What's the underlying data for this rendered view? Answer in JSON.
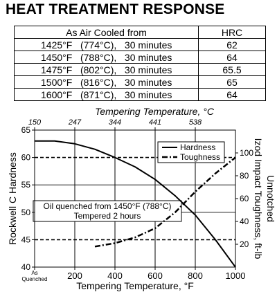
{
  "title": "HEAT TREATMENT RESPONSE",
  "table": {
    "header": {
      "condition": "As Air Cooled from",
      "hrc": "HRC"
    },
    "rows": [
      {
        "condition": "1425°F   (774°C),   30 minutes",
        "hrc": "62"
      },
      {
        "condition": "1450°F   (788°C),   30 minutes",
        "hrc": "64"
      },
      {
        "condition": "1475°F   (802°C),   30 minutes",
        "hrc": "65.5"
      },
      {
        "condition": "1500°F   (816°C),   30 minutes",
        "hrc": "65"
      },
      {
        "condition": "1600°F   (871°C),   30 minutes",
        "hrc": "64"
      }
    ]
  },
  "chart_data": {
    "type": "line",
    "xlabel": "Tempering Temperature, °F",
    "x2label": "Tempering Temperature, °C",
    "ylabel": "Rockwell C Hardness",
    "y2label_line1": "Unnotched",
    "y2label_line2": "Izod Impact Toughness, ft-lb",
    "xlim": [
      0,
      1000
    ],
    "ylim": [
      40,
      65
    ],
    "y2lim": [
      0,
      120
    ],
    "x_ticks": [
      {
        "value": 0,
        "label": ""
      },
      {
        "value": 200,
        "label": "200"
      },
      {
        "value": 400,
        "label": "400"
      },
      {
        "value": 600,
        "label": "600"
      },
      {
        "value": 800,
        "label": "800"
      },
      {
        "value": 1000,
        "label": "1000"
      }
    ],
    "x_first_label_line1": "As",
    "x_first_label_line2": "Quenched",
    "x2_ticks": [
      {
        "value": 0,
        "label": "150"
      },
      {
        "value": 200,
        "label": "247"
      },
      {
        "value": 400,
        "label": "344"
      },
      {
        "value": 600,
        "label": "441"
      },
      {
        "value": 800,
        "label": "538"
      }
    ],
    "y_ticks": [
      40,
      45,
      50,
      55,
      60,
      65
    ],
    "y2_ticks": [
      20,
      40,
      60,
      80,
      100
    ],
    "grid": true,
    "legend_position": "top-right",
    "annotation_line1": "Oil quenched from 1450°F (788°C)",
    "annotation_line2": "Tempered 2 hours",
    "series": [
      {
        "name": "Hardness",
        "axis": "left",
        "style": "solid",
        "x": [
          0,
          100,
          200,
          300,
          400,
          500,
          600,
          700,
          800,
          900,
          1000
        ],
        "y": [
          63,
          63,
          62.5,
          61.5,
          60,
          58.3,
          56,
          53,
          49.5,
          45,
          40
        ]
      },
      {
        "name": "Toughness",
        "axis": "right",
        "style": "dashdot",
        "x": [
          300,
          400,
          500,
          600,
          700,
          800,
          900,
          1000
        ],
        "y": [
          18,
          21,
          26,
          34,
          48,
          66,
          82,
          96
        ]
      }
    ]
  }
}
